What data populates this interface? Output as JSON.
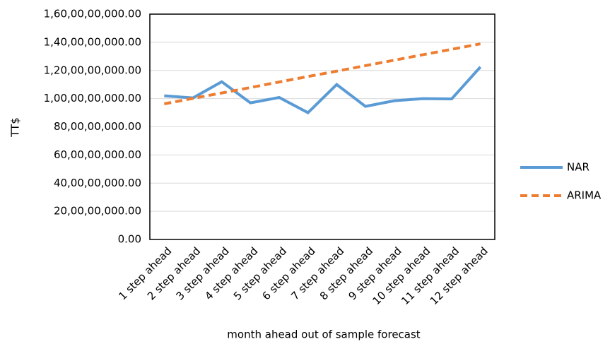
{
  "chart_data": {
    "type": "line",
    "y_label": "TT$",
    "x_label": "month ahead out of sample forecast",
    "categories": [
      "1 step ahead",
      "2 step ahead",
      "3 step ahead",
      "4 step ahead",
      "5 step ahead",
      "6 step ahead",
      "7 step ahead",
      "8 step ahead",
      "9 step ahead",
      "10 step ahead",
      "11 step ahead",
      "12 step ahead"
    ],
    "series": [
      {
        "name": "NAR",
        "color": "#5b9bd5",
        "dashed": false,
        "values": [
          1020000000,
          1005000000,
          1120000000,
          970000000,
          1008000000,
          900000000,
          1100000000,
          945000000,
          985000000,
          1000000000,
          998000000,
          1225000000
        ]
      },
      {
        "name": "ARIMA",
        "color": "#ed7d31",
        "dashed": true,
        "values": [
          963000000,
          1002000000,
          1040000000,
          1079000000,
          1118000000,
          1157000000,
          1195000000,
          1234000000,
          1273000000,
          1312000000,
          1350000000,
          1389000000
        ]
      }
    ],
    "ylim": [
      0,
      1600000000
    ],
    "yticks": [
      {
        "value": 0,
        "label": "0.00"
      },
      {
        "value": 200000000,
        "label": "20,00,00,000.00"
      },
      {
        "value": 400000000,
        "label": "40,00,00,000.00"
      },
      {
        "value": 600000000,
        "label": "60,00,00,000.00"
      },
      {
        "value": 800000000,
        "label": "80,00,00,000.00"
      },
      {
        "value": 1000000000,
        "label": "1,00,00,00,000.00"
      },
      {
        "value": 1200000000,
        "label": "1,20,00,00,000.00"
      },
      {
        "value": 1400000000,
        "label": "1,40,00,00,000.00"
      },
      {
        "value": 1600000000,
        "label": "1,60,00,00,000.00"
      }
    ],
    "grid": true,
    "legend": "right"
  }
}
